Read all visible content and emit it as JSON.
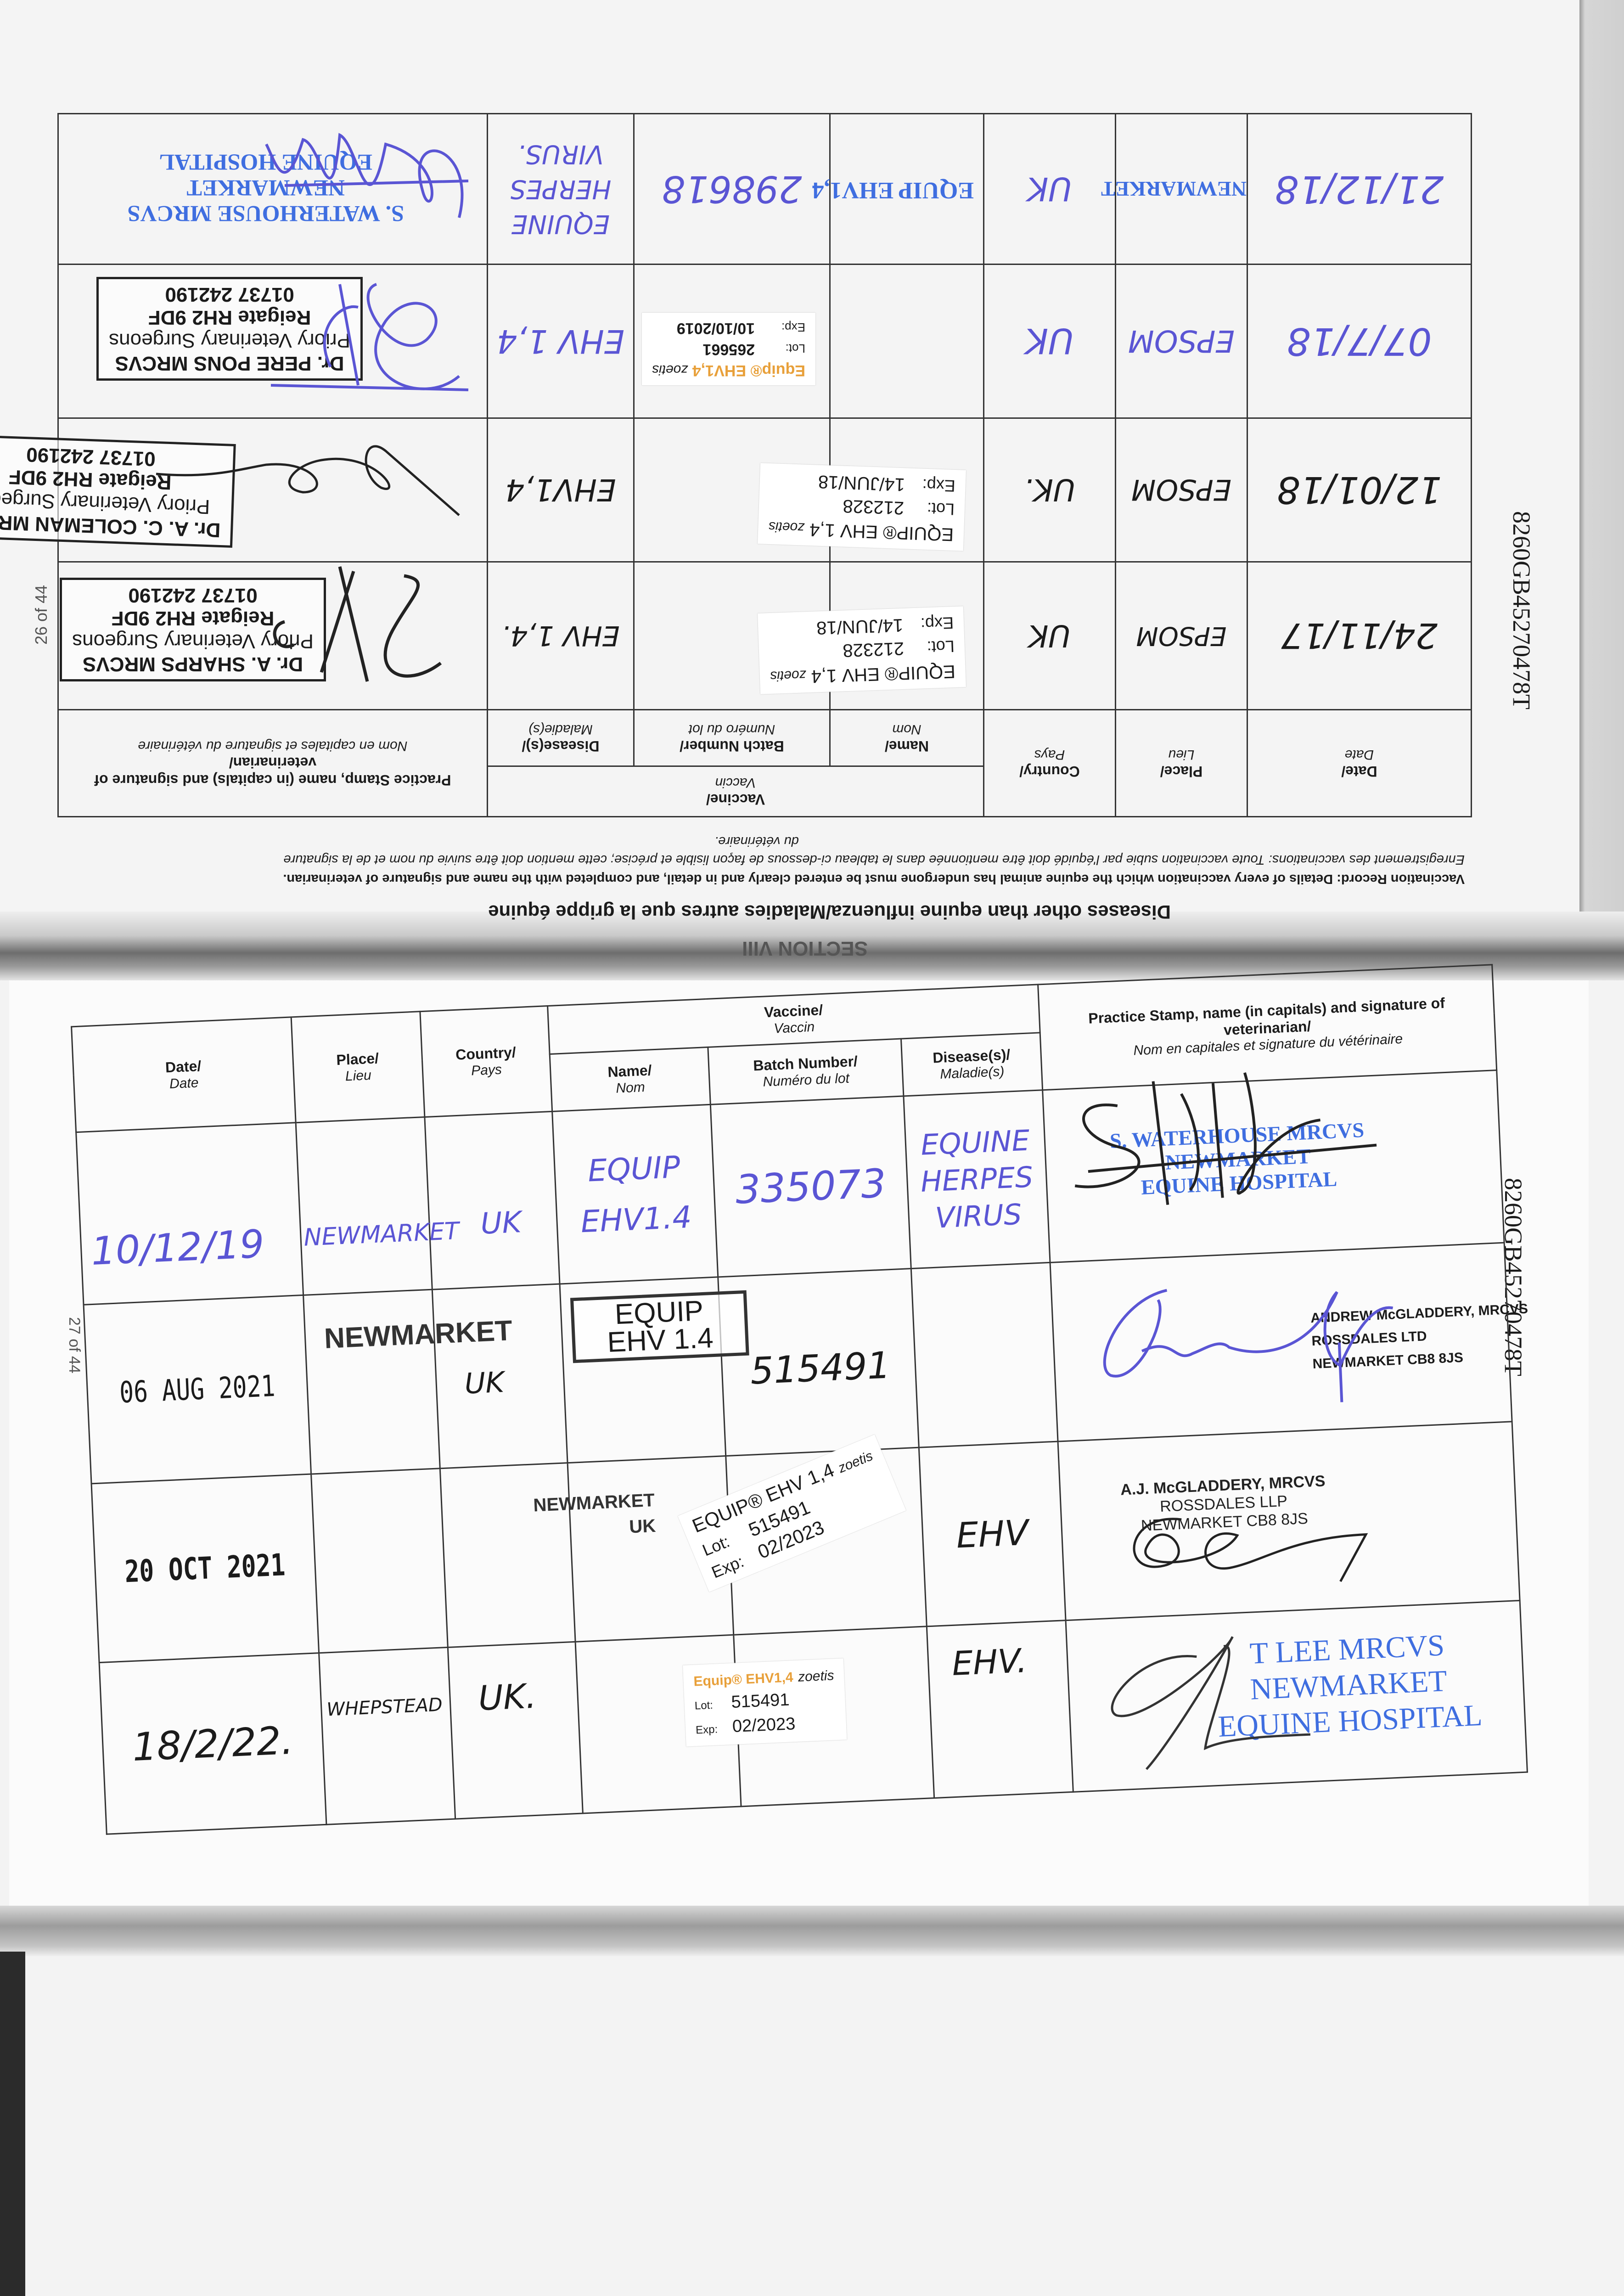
{
  "headers": {
    "date": "Date/",
    "date_fr": "Date",
    "place": "Place/",
    "place_fr": "Lieu",
    "country": "Country/",
    "country_fr": "Pays",
    "vaccine": "Vaccine/",
    "vaccine_fr": "Vaccin",
    "name": "Name/",
    "name_fr": "Nom",
    "batch": "Batch Number/",
    "batch_fr": "Numéro du lot",
    "disease": "Disease(s)/",
    "disease_fr": "Maladie(s)",
    "stamp": "Practice Stamp, name (in capitals) and signature of veterinarian/",
    "stamp_fr": "Nom en capitales et signature du vétérinaire"
  },
  "colors": {
    "blue_ink": "#5a55d4",
    "stamp_blue": "#3f6ee0",
    "label_orange": "#e8a03a"
  },
  "upper_page": {
    "section": "SECTION VIII",
    "heading": "Diseases other than equine influenza/Maladies autres que la grippe équine",
    "instructions_en": "Vaccination Record: Details of every vaccination which the equine animal has undergone must be entered clearly and in detail, and completed with the name and signature of veterinarian.",
    "instructions_fr": "Enregistrement des vaccinations: Toute vaccination subie par l'équidé doit être mentionnée dans le tableau ci-dessous de façon lisible et précise; cette mention doit être suivie du nom et de la signature",
    "instructions_fr_cont": "du vétérinaire.",
    "page_number": "26 of 44",
    "passport_id": "8260GB45270478T",
    "rows": [
      {
        "date": "24/11/17",
        "place": "EPSOM",
        "country": "UK",
        "label": {
          "product": "EQUIP® EHV 1,4",
          "brand": "zoetis",
          "lot_label": "Lot:",
          "lot": "212328",
          "exp_label": "Exp:",
          "exp": "14/JUN/18"
        },
        "disease": "EHV 1,4.",
        "stamp": [
          "Dr. A. SHARPS MRCVS",
          "Priory Veterinary Surgeons",
          "Reigate  RH2 9DF",
          "01737 242190"
        ]
      },
      {
        "date": "12/01/18",
        "place": "EPSOM",
        "country": "UK.",
        "label": {
          "product": "EQUIP® EHV 1,4",
          "brand": "zoetis",
          "lot_label": "Lot:",
          "lot": "212328",
          "exp_label": "Exp:",
          "exp": "14/JUN/18"
        },
        "disease": "EHV1,4",
        "stamp": [
          "Dr. A. C. COLEMAN MRCVS",
          "Priory Veterinary Surgeons",
          "Reigate  RH2 9DF",
          "01737 242190"
        ]
      },
      {
        "date": "07/7/18",
        "place": "EPSOM",
        "country": "UK",
        "label": {
          "product": "Equip® EHV1,4",
          "brand": "zoetis",
          "lot_label": "Lot:",
          "lot": "265661",
          "exp_label": "Exp:",
          "exp": "10/10/2019"
        },
        "disease": "EHV 1,4",
        "stamp": [
          "Dr. PERE PONS MRCVS",
          "Priory Veterinary Surgeons",
          "Reigate  RH2 9DF",
          "01737 242190"
        ]
      },
      {
        "date": "21/12/18",
        "place": "NEWMARKET",
        "country": "UK",
        "name": "EQUIP EHV1,4",
        "batch": "298618",
        "disease": [
          "EQUINE",
          "HERPES",
          "VIRUS."
        ],
        "stamp": [
          "S. WATERHOUSE MRCVS",
          "NEWMARKET",
          "EQUINE HOSPITAL"
        ]
      }
    ]
  },
  "lower_page": {
    "page_number": "27 of 44",
    "passport_id": "8260GB45270478T",
    "rows": [
      {
        "date": "10/12/19",
        "place": "NEWMARKET",
        "country": "UK",
        "name": [
          "EQUIP",
          "EHV1.4"
        ],
        "batch": "335073",
        "disease": [
          "EQUINE",
          "HERPES",
          "VIRUS"
        ],
        "stamp": [
          "S. WATERHOUSE MRCVS",
          "NEWMARKET",
          "EQUINE HOSPITAL"
        ]
      },
      {
        "date": "06 AUG 2021",
        "place": "NEWMARKET",
        "country": "UK",
        "name": [
          "EQUIP",
          "EHV 1.4"
        ],
        "batch": "515491",
        "stamp": [
          "ANDREW McGLADDERY, MRCVS",
          "ROSSDALES LTD",
          "NEWMARKET CB8 8JS"
        ]
      },
      {
        "date": "20 OCT 2021",
        "place": "NEWMARKET",
        "country": "UK",
        "label": {
          "product": "EQUIP® EHV 1,4",
          "brand": "zoetis",
          "lot_label": "Lot:",
          "lot": "515491",
          "exp_label": "Exp:",
          "exp": "02/2023"
        },
        "disease": "EHV",
        "stamp": [
          "A.J. McGLADDERY, MRCVS",
          "ROSSDALES LLP",
          "NEWMARKET CB8 8JS"
        ]
      },
      {
        "date": "18/2/22.",
        "place": "WHEPSTEAD",
        "country": "UK.",
        "label": {
          "product": "Equip® EHV1,4",
          "brand": "zoetis",
          "lot_label": "Lot:",
          "lot": "515491",
          "exp_label": "Exp:",
          "exp": "02/2023"
        },
        "disease": "EHV.",
        "stamp": [
          "T LEE MRCVS",
          "NEWMARKET",
          "EQUINE HOSPITAL"
        ]
      }
    ]
  }
}
